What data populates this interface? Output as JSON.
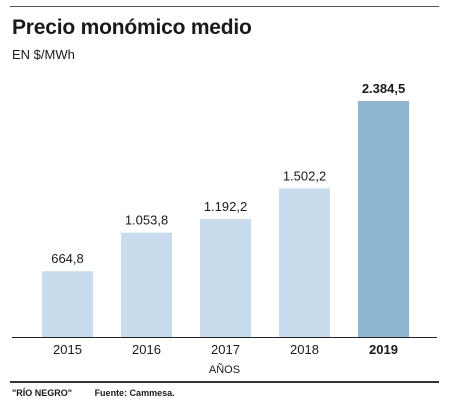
{
  "chart_data": {
    "type": "bar",
    "title": "Precio monómico medio",
    "subtitle": "EN $/MWh",
    "xlabel": "AÑOS",
    "ylabel": "",
    "categories": [
      "2015",
      "2016",
      "2017",
      "2018",
      "2019"
    ],
    "values": [
      664.8,
      1053.8,
      1192.2,
      1502.2,
      2384.5
    ],
    "value_labels": [
      "664,8",
      "1.053,8",
      "1.192,2",
      "1.502,2",
      "2.384,5"
    ],
    "highlight_index": 4,
    "ylim": [
      0,
      2384.5
    ],
    "grid": false,
    "legend": "none",
    "colors": {
      "bar": "#c9dced",
      "bar_highlight": "#8fb6d1",
      "axis": "#222222"
    }
  },
  "footer": {
    "credit": "\"RÍO NEGRO\"",
    "source": "Fuente: Cammesa."
  }
}
